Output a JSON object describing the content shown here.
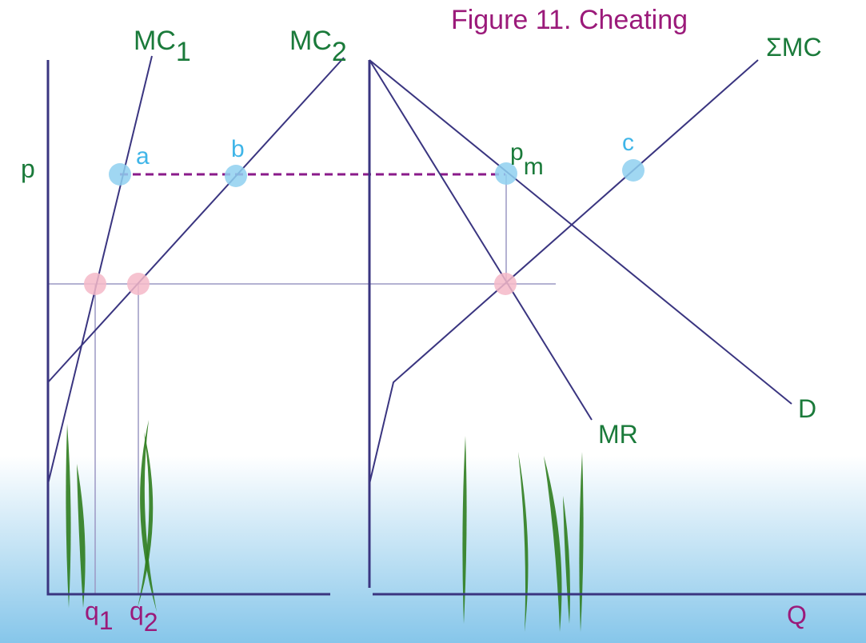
{
  "title": "Figure 11. Cheating",
  "labels": {
    "mc1": {
      "base": "MC",
      "sub": "1"
    },
    "mc2": {
      "base": "MC",
      "sub": "2"
    },
    "sum_mc": "ΣMC",
    "price": "p",
    "point_a": "a",
    "point_b": "b",
    "point_c": "c",
    "pm": {
      "base": "p",
      "sub": "m"
    },
    "demand": "D",
    "mr": "MR",
    "q1": {
      "base": "q",
      "sub": "1"
    },
    "q2": {
      "base": "q",
      "sub": "2"
    },
    "quantity": "Q"
  }
}
